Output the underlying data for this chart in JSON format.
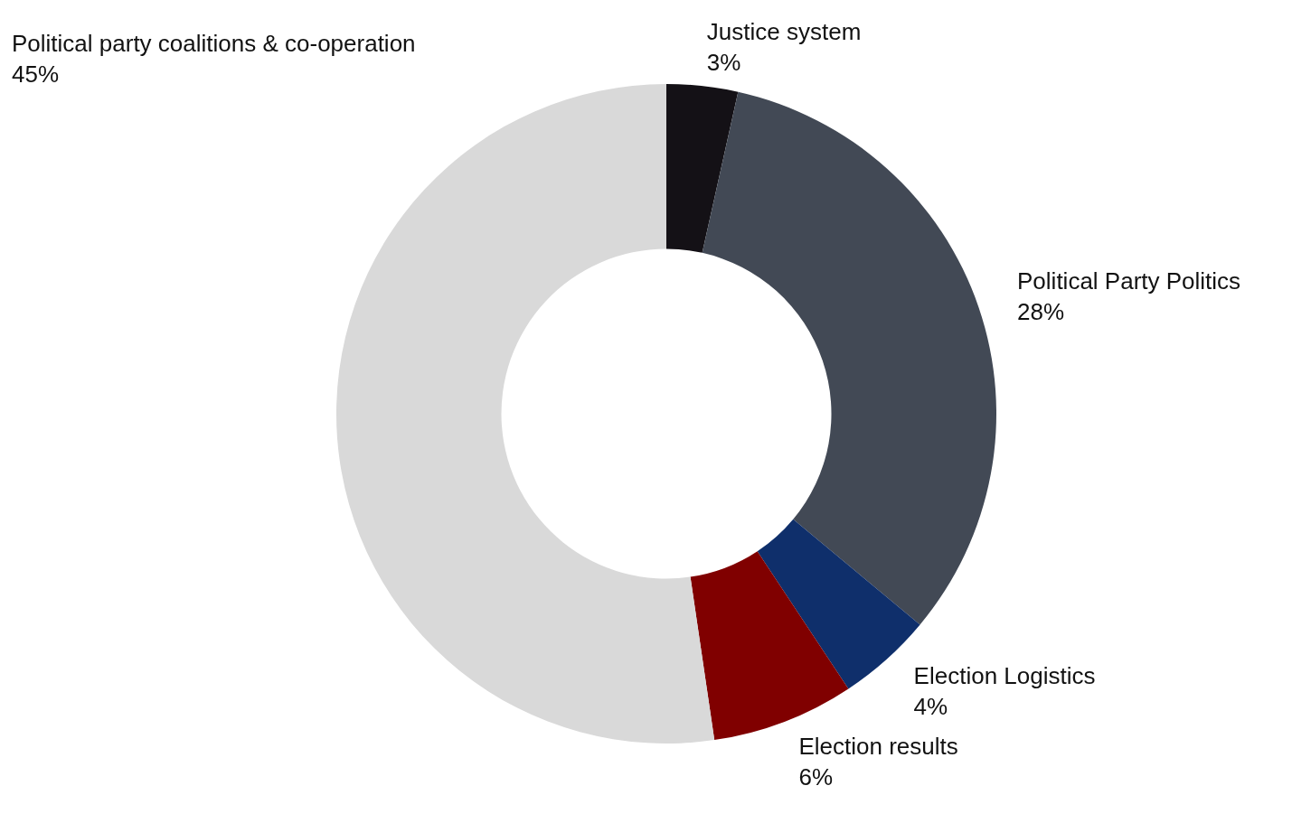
{
  "chart_data": {
    "type": "donut",
    "categories": [
      "Justice system",
      "Political Party Politics",
      "Election Logistics",
      "Election results",
      "Political party coalitions & co-operation"
    ],
    "values": [
      3,
      28,
      4,
      6,
      45
    ],
    "value_labels": [
      "3%",
      "28%",
      "4%",
      "6%",
      "45%"
    ],
    "colors": [
      "#141116",
      "#424955",
      "#0f2f6b",
      "#800000",
      "#d9d9d9"
    ]
  }
}
